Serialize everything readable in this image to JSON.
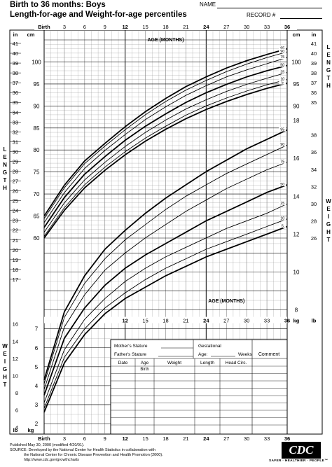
{
  "header": {
    "title_line1": "Birth to 36 months: Boys",
    "title_line2": "Length-for-age and Weight-for-age percentiles",
    "name_label": "NAME",
    "record_label": "RECORD #"
  },
  "footer": {
    "published": "Published May 30, 2000 (modified 4/20/01).",
    "source_1": "SOURCE: Developed by the National Center for Health Statistics in collaboration with",
    "source_2": "the National Center for Chronic Disease Prevention and Health Promotion (2000).",
    "url": "http://www.cdc.gov/growthcharts",
    "logo": "CDC",
    "tagline": "SAFER · HEALTHIER · PEOPLE™"
  },
  "colors": {
    "ink": "#000000",
    "grid": "#808080",
    "paper": "#ffffff"
  },
  "chart_data": [
    {
      "type": "line",
      "title": "Length-for-age percentiles",
      "xlabel": "AGE (MONTHS)",
      "x_top_ticks": [
        "Birth",
        "3",
        "6",
        "9",
        "12",
        "15",
        "18",
        "21",
        "24",
        "27",
        "30",
        "33",
        "36"
      ],
      "ylabel_left": "LENGTH",
      "ylim_cm": [
        60,
        105
      ],
      "yticks_cm": [
        "60",
        "65",
        "70",
        "75",
        "80",
        "85",
        "90",
        "95",
        "100"
      ],
      "yticks_in_left": [
        "41",
        "40",
        "39",
        "38",
        "37",
        "36",
        "35",
        "34",
        "33",
        "32",
        "31",
        "30",
        "29",
        "28",
        "27",
        "26",
        "25",
        "24",
        "23",
        "22",
        "21",
        "20",
        "19",
        "18",
        "17"
      ],
      "yticks_in_right": [
        "41",
        "40",
        "39",
        "38",
        "37",
        "36",
        "35"
      ],
      "x": [
        0,
        3,
        6,
        9,
        12,
        15,
        18,
        21,
        24,
        27,
        30,
        33,
        36
      ],
      "series": [
        {
          "name": "95",
          "values": [
            65.0,
            72.0,
            77.5,
            81.5,
            85.3,
            88.7,
            91.7,
            94.4,
            96.6,
            98.6,
            100.3,
            101.7,
            103.0
          ]
        },
        {
          "name": "90",
          "values": [
            64.4,
            71.4,
            76.9,
            80.9,
            84.6,
            88.0,
            91.0,
            93.6,
            95.8,
            97.8,
            99.5,
            101.0,
            102.3
          ]
        },
        {
          "name": "75",
          "values": [
            63.5,
            70.3,
            75.8,
            79.9,
            83.5,
            86.9,
            89.8,
            92.4,
            94.6,
            96.6,
            98.2,
            99.6,
            101.0
          ]
        },
        {
          "name": "50",
          "values": [
            62.4,
            69.2,
            74.5,
            78.5,
            82.2,
            85.4,
            88.2,
            90.8,
            93.0,
            94.9,
            96.6,
            98.0,
            99.2
          ]
        },
        {
          "name": "25",
          "values": [
            61.3,
            68.0,
            73.2,
            77.2,
            80.8,
            84.0,
            86.8,
            89.3,
            91.4,
            93.3,
            94.9,
            96.3,
            97.6
          ]
        },
        {
          "name": "10",
          "values": [
            60.4,
            66.9,
            72.1,
            76.1,
            79.6,
            82.7,
            85.4,
            87.9,
            90.0,
            91.8,
            93.4,
            94.8,
            96.0
          ]
        },
        {
          "name": "5",
          "values": [
            60.0,
            66.3,
            71.4,
            75.4,
            78.9,
            82.0,
            84.7,
            87.1,
            89.2,
            91.0,
            92.6,
            94.0,
            95.2
          ]
        }
      ]
    },
    {
      "type": "line",
      "title": "Weight-for-age percentiles",
      "xlabel": "AGE (MONTHS)",
      "x_bottom_ticks": [
        "Birth",
        "3",
        "6",
        "9",
        "12",
        "15",
        "18",
        "21",
        "24",
        "27",
        "30",
        "33",
        "36"
      ],
      "ylabel_right": "WEIGHT",
      "ylim_kg": [
        2,
        18
      ],
      "yticks_kg_left": [
        "2",
        "3",
        "4",
        "5",
        "6",
        "7"
      ],
      "yticks_kg_right": [
        "8",
        "10",
        "12",
        "14",
        "16",
        "18"
      ],
      "yticks_lb_left": [
        "4",
        "6",
        "8",
        "10",
        "12",
        "14",
        "16"
      ],
      "yticks_lb_right": [
        "26",
        "28",
        "30",
        "32",
        "34",
        "36",
        "38"
      ],
      "x": [
        0,
        3,
        6,
        9,
        12,
        15,
        18,
        21,
        24,
        27,
        30,
        33,
        36
      ],
      "series": [
        {
          "name": "95",
          "values": [
            4.3,
            7.9,
            9.8,
            11.2,
            12.2,
            13.1,
            13.9,
            14.6,
            15.3,
            15.9,
            16.5,
            17.0,
            17.5
          ]
        },
        {
          "name": "90",
          "values": [
            4.1,
            7.6,
            9.4,
            10.7,
            11.7,
            12.5,
            13.3,
            14.0,
            14.6,
            15.2,
            15.7,
            16.2,
            16.7
          ]
        },
        {
          "name": "75",
          "values": [
            3.8,
            7.1,
            8.8,
            10.1,
            11.0,
            11.8,
            12.5,
            13.2,
            13.8,
            14.4,
            14.9,
            15.4,
            15.8
          ]
        },
        {
          "name": "50",
          "values": [
            3.5,
            6.5,
            8.1,
            9.3,
            10.2,
            10.9,
            11.5,
            12.1,
            12.7,
            13.2,
            13.7,
            14.2,
            14.6
          ]
        },
        {
          "name": "25",
          "values": [
            3.1,
            5.9,
            7.5,
            8.6,
            9.5,
            10.2,
            10.8,
            11.3,
            11.8,
            12.3,
            12.7,
            13.1,
            13.6
          ]
        },
        {
          "name": "10",
          "values": [
            2.8,
            5.5,
            7.0,
            8.1,
            8.9,
            9.6,
            10.2,
            10.7,
            11.2,
            11.6,
            12.0,
            12.4,
            12.8
          ]
        },
        {
          "name": "5",
          "values": [
            2.6,
            5.2,
            6.7,
            7.8,
            8.6,
            9.2,
            9.8,
            10.3,
            10.8,
            11.2,
            11.6,
            12.0,
            12.4
          ]
        }
      ]
    }
  ],
  "record_table": {
    "mothers_stature": "Mother's Stature",
    "fathers_stature": "Father's Stature",
    "gestational_label": "Gestational",
    "age_label": "Age:",
    "weeks_label": "Weeks",
    "comment_label": "Comment",
    "columns": [
      "Date",
      "Age",
      "Weight",
      "Length",
      "Head  Circ."
    ],
    "birth_label": "Birth"
  },
  "unit_labels": {
    "in": "in",
    "cm": "cm",
    "kg": "kg",
    "lb": "lb",
    "length_vertical": "LENGTH",
    "weight_vertical": "WEIGHT"
  }
}
